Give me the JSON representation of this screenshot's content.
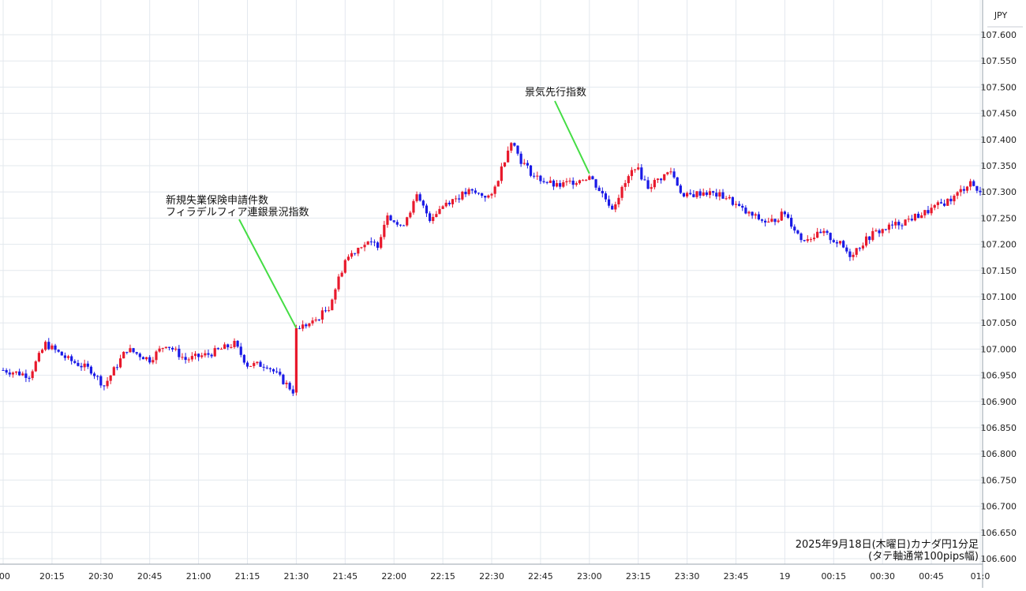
{
  "chart_data": {
    "type": "candlestick",
    "currency_label": "JPY",
    "y_ticks": [
      "107.600",
      "107.550",
      "107.500",
      "107.450",
      "107.400",
      "107.350",
      "107.300",
      "107.250",
      "107.200",
      "107.150",
      "107.100",
      "107.050",
      "107.000",
      "106.950",
      "106.900",
      "106.850",
      "106.800",
      "106.750",
      "106.700",
      "106.650",
      "106.600"
    ],
    "ylim": [
      106.6,
      107.6
    ],
    "x_ticks": [
      ":00",
      "20:15",
      "20:30",
      "20:45",
      "21:00",
      "21:15",
      "21:30",
      "21:45",
      "22:00",
      "22:15",
      "22:30",
      "22:45",
      "23:00",
      "23:15",
      "23:30",
      "23:45",
      "19",
      "00:15",
      "00:30",
      "00:45",
      "01:0"
    ],
    "x_start_minutes": 1200,
    "x_end_minutes": 1503,
    "annotations": [
      {
        "lines": [
          "新規失業保険申請件数",
          "フィラデルフィア連銀景況指数"
        ],
        "time_minutes": 1290,
        "price": 107.04
      },
      {
        "lines": [
          "景気先行指数"
        ],
        "time_minutes": 1380,
        "price": 107.335
      }
    ],
    "info_lines": [
      "2025年9月18日(木曜日)カナダ円1分足",
      "(タテ軸通常100pips幅)"
    ],
    "key_prices": [
      {
        "time_minutes": 1200,
        "price": 106.96
      },
      {
        "time_minutes": 1208,
        "price": 106.95
      },
      {
        "time_minutes": 1213,
        "price": 107.01
      },
      {
        "time_minutes": 1220,
        "price": 106.98
      },
      {
        "time_minutes": 1227,
        "price": 106.96
      },
      {
        "time_minutes": 1231,
        "price": 106.93
      },
      {
        "time_minutes": 1238,
        "price": 107.0
      },
      {
        "time_minutes": 1245,
        "price": 106.98
      },
      {
        "time_minutes": 1250,
        "price": 107.01
      },
      {
        "time_minutes": 1256,
        "price": 106.98
      },
      {
        "time_minutes": 1263,
        "price": 106.99
      },
      {
        "time_minutes": 1271,
        "price": 107.01
      },
      {
        "time_minutes": 1275,
        "price": 106.97
      },
      {
        "time_minutes": 1281,
        "price": 106.97
      },
      {
        "time_minutes": 1289,
        "price": 106.92
      },
      {
        "time_minutes": 1290,
        "price": 107.04
      },
      {
        "time_minutes": 1295,
        "price": 107.05
      },
      {
        "time_minutes": 1300,
        "price": 107.08
      },
      {
        "time_minutes": 1305,
        "price": 107.17
      },
      {
        "time_minutes": 1310,
        "price": 107.2
      },
      {
        "time_minutes": 1315,
        "price": 107.2
      },
      {
        "time_minutes": 1318,
        "price": 107.26
      },
      {
        "time_minutes": 1322,
        "price": 107.23
      },
      {
        "time_minutes": 1327,
        "price": 107.29
      },
      {
        "time_minutes": 1331,
        "price": 107.25
      },
      {
        "time_minutes": 1336,
        "price": 107.28
      },
      {
        "time_minutes": 1343,
        "price": 107.3
      },
      {
        "time_minutes": 1350,
        "price": 107.29
      },
      {
        "time_minutes": 1356,
        "price": 107.4
      },
      {
        "time_minutes": 1359,
        "price": 107.36
      },
      {
        "time_minutes": 1363,
        "price": 107.33
      },
      {
        "time_minutes": 1370,
        "price": 107.31
      },
      {
        "time_minutes": 1375,
        "price": 107.32
      },
      {
        "time_minutes": 1380,
        "price": 107.33
      },
      {
        "time_minutes": 1387,
        "price": 107.27
      },
      {
        "time_minutes": 1394,
        "price": 107.35
      },
      {
        "time_minutes": 1398,
        "price": 107.31
      },
      {
        "time_minutes": 1405,
        "price": 107.34
      },
      {
        "time_minutes": 1409,
        "price": 107.29
      },
      {
        "time_minutes": 1415,
        "price": 107.3
      },
      {
        "time_minutes": 1422,
        "price": 107.29
      },
      {
        "time_minutes": 1428,
        "price": 107.26
      },
      {
        "time_minutes": 1435,
        "price": 107.24
      },
      {
        "time_minutes": 1440,
        "price": 107.26
      },
      {
        "time_minutes": 1445,
        "price": 107.21
      },
      {
        "time_minutes": 1452,
        "price": 107.22
      },
      {
        "time_minutes": 1457,
        "price": 107.2
      },
      {
        "time_minutes": 1460,
        "price": 107.18
      },
      {
        "time_minutes": 1467,
        "price": 107.22
      },
      {
        "time_minutes": 1475,
        "price": 107.24
      },
      {
        "time_minutes": 1483,
        "price": 107.26
      },
      {
        "time_minutes": 1492,
        "price": 107.29
      },
      {
        "time_minutes": 1497,
        "price": 107.32
      },
      {
        "time_minutes": 1503,
        "price": 107.27
      }
    ],
    "colors": {
      "up": "#e8192c",
      "down": "#1a1ae6",
      "annotation_line": "#44dd44",
      "grid": "#e3e8ee"
    },
    "grid": true
  }
}
